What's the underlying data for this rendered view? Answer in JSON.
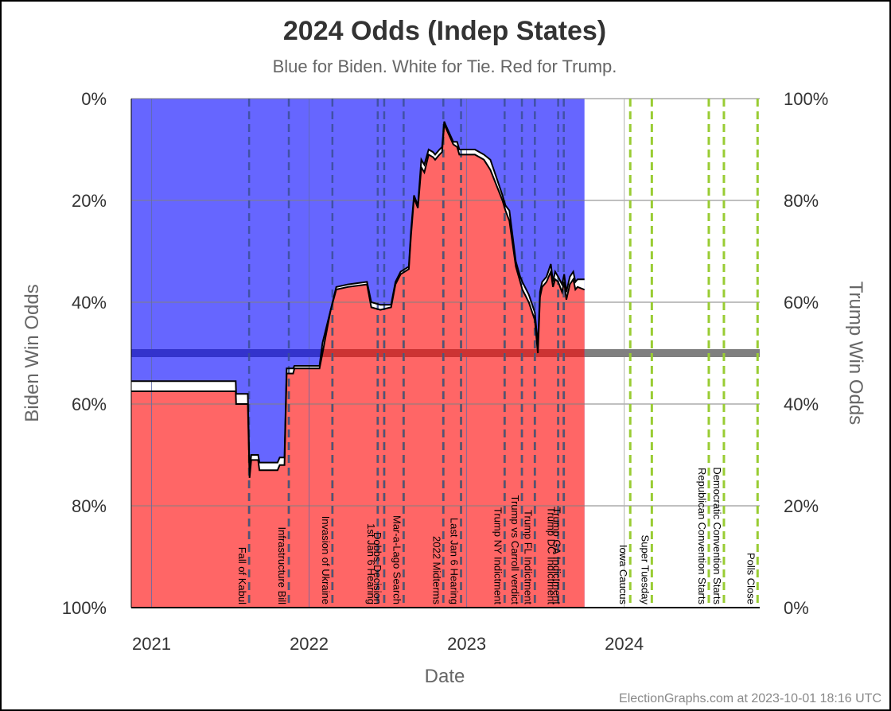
{
  "chart_data": {
    "type": "area",
    "title": "2024 Odds (Indep States)",
    "subtitle": "Blue for Biden. White for Tie. Red for Trump.",
    "xlabel": "Date",
    "ylabel_left": "Biden Win Odds",
    "ylabel_right": "Trump Win Odds",
    "x_ticks": [
      "2021",
      "2022",
      "2023",
      "2024"
    ],
    "y_ticks_left": [
      "0%",
      "20%",
      "40%",
      "60%",
      "80%",
      "100%"
    ],
    "y_ticks_right": [
      "100%",
      "80%",
      "60%",
      "40%",
      "20%",
      "0%"
    ],
    "x_range": [
      "2020-11-15",
      "2024-11-10"
    ],
    "y_range": [
      0,
      100
    ],
    "colors": {
      "biden": "#6666ff",
      "trump": "#ff6666",
      "tie": "#ffffff",
      "midline_biden": "#3333cc",
      "midline_trump": "#cc3333",
      "midline_future": "#808080",
      "past_event": "#cc6600",
      "past_event_blue": "#3a4e96",
      "future_event": "#99cc33"
    },
    "series": [
      {
        "name": "Biden",
        "points": [
          [
            "2020-11-15",
            55.5
          ],
          [
            "2021-07-15",
            55.5
          ],
          [
            "2021-07-16",
            58
          ],
          [
            "2021-08-12",
            58
          ],
          [
            "2021-08-16",
            73.5
          ],
          [
            "2021-08-20",
            70
          ],
          [
            "2021-09-05",
            70
          ],
          [
            "2021-09-08",
            71.5
          ],
          [
            "2021-10-20",
            71.5
          ],
          [
            "2021-10-25",
            70.5
          ],
          [
            "2021-11-05",
            70.5
          ],
          [
            "2021-11-10",
            53
          ],
          [
            "2021-11-25",
            53
          ],
          [
            "2021-11-28",
            52.5
          ],
          [
            "2022-01-25",
            52.5
          ],
          [
            "2022-02-01",
            48
          ],
          [
            "2022-02-20",
            41.5
          ],
          [
            "2022-03-05",
            37
          ],
          [
            "2022-04-01",
            36.5
          ],
          [
            "2022-05-15",
            36
          ],
          [
            "2022-05-25",
            40
          ],
          [
            "2022-06-15",
            40.5
          ],
          [
            "2022-07-10",
            40.5
          ],
          [
            "2022-07-20",
            36
          ],
          [
            "2022-08-01",
            34
          ],
          [
            "2022-08-20",
            33
          ],
          [
            "2022-08-25",
            26
          ],
          [
            "2022-09-01",
            19
          ],
          [
            "2022-09-10",
            21
          ],
          [
            "2022-09-18",
            12
          ],
          [
            "2022-09-25",
            13
          ],
          [
            "2022-10-05",
            10
          ],
          [
            "2022-10-15",
            10.5
          ],
          [
            "2022-10-20",
            11
          ],
          [
            "2022-10-30",
            10
          ],
          [
            "2022-11-05",
            9.5
          ],
          [
            "2022-11-10",
            4.5
          ],
          [
            "2022-11-15",
            5.5
          ],
          [
            "2022-12-01",
            8.5
          ],
          [
            "2022-12-10",
            8.5
          ],
          [
            "2022-12-15",
            10
          ],
          [
            "2023-01-20",
            10
          ],
          [
            "2023-02-10",
            11
          ],
          [
            "2023-02-25",
            12
          ],
          [
            "2023-03-25",
            19
          ],
          [
            "2023-04-01",
            21
          ],
          [
            "2023-04-10",
            22
          ],
          [
            "2023-04-25",
            32
          ],
          [
            "2023-05-05",
            35
          ],
          [
            "2023-05-10",
            36
          ],
          [
            "2023-05-25",
            38.5
          ],
          [
            "2023-06-08",
            42
          ],
          [
            "2023-06-15",
            48.5
          ],
          [
            "2023-06-20",
            38
          ],
          [
            "2023-06-25",
            36
          ],
          [
            "2023-07-05",
            35
          ],
          [
            "2023-07-15",
            32.5
          ],
          [
            "2023-07-20",
            36
          ],
          [
            "2023-07-25",
            34
          ],
          [
            "2023-08-01",
            35
          ],
          [
            "2023-08-10",
            36.5
          ],
          [
            "2023-08-15",
            34.5
          ],
          [
            "2023-08-20",
            38
          ],
          [
            "2023-08-28",
            35
          ],
          [
            "2023-09-05",
            34
          ],
          [
            "2023-09-10",
            36
          ],
          [
            "2023-09-15",
            35.5
          ],
          [
            "2023-09-30",
            35.5
          ]
        ]
      },
      {
        "name": "Trump",
        "points": [
          [
            "2020-11-15",
            57.5
          ],
          [
            "2021-07-15",
            57.5
          ],
          [
            "2021-07-16",
            60
          ],
          [
            "2021-08-12",
            60
          ],
          [
            "2021-08-16",
            74.5
          ],
          [
            "2021-08-20",
            71
          ],
          [
            "2021-09-05",
            71
          ],
          [
            "2021-09-08",
            73
          ],
          [
            "2021-10-20",
            73
          ],
          [
            "2021-10-25",
            72
          ],
          [
            "2021-11-05",
            72
          ],
          [
            "2021-11-10",
            54
          ],
          [
            "2021-11-25",
            54
          ],
          [
            "2021-11-28",
            53
          ],
          [
            "2022-01-25",
            53
          ],
          [
            "2022-02-01",
            50
          ],
          [
            "2022-02-20",
            41.5
          ],
          [
            "2022-03-05",
            37.5
          ],
          [
            "2022-04-01",
            37
          ],
          [
            "2022-05-15",
            36.5
          ],
          [
            "2022-05-25",
            41
          ],
          [
            "2022-06-15",
            41.5
          ],
          [
            "2022-07-10",
            41
          ],
          [
            "2022-07-20",
            36.5
          ],
          [
            "2022-08-01",
            34.5
          ],
          [
            "2022-08-20",
            33.5
          ],
          [
            "2022-08-25",
            27
          ],
          [
            "2022-09-01",
            19.5
          ],
          [
            "2022-09-10",
            21.5
          ],
          [
            "2022-09-18",
            13.5
          ],
          [
            "2022-09-25",
            14.5
          ],
          [
            "2022-10-05",
            11
          ],
          [
            "2022-10-15",
            11.5
          ],
          [
            "2022-10-20",
            12
          ],
          [
            "2022-10-30",
            11
          ],
          [
            "2022-11-05",
            10.5
          ],
          [
            "2022-11-10",
            5
          ],
          [
            "2022-11-15",
            6
          ],
          [
            "2022-12-01",
            9
          ],
          [
            "2022-12-10",
            9.5
          ],
          [
            "2022-12-15",
            11
          ],
          [
            "2023-01-20",
            11
          ],
          [
            "2023-02-10",
            12
          ],
          [
            "2023-02-25",
            14
          ],
          [
            "2023-03-25",
            20
          ],
          [
            "2023-04-01",
            22
          ],
          [
            "2023-04-10",
            24
          ],
          [
            "2023-04-25",
            33
          ],
          [
            "2023-05-05",
            36
          ],
          [
            "2023-05-10",
            37.5
          ],
          [
            "2023-05-25",
            40
          ],
          [
            "2023-06-08",
            43.5
          ],
          [
            "2023-06-15",
            50
          ],
          [
            "2023-06-20",
            39
          ],
          [
            "2023-06-25",
            37
          ],
          [
            "2023-07-05",
            36
          ],
          [
            "2023-07-15",
            34
          ],
          [
            "2023-07-20",
            37
          ],
          [
            "2023-07-25",
            35.5
          ],
          [
            "2023-08-01",
            36
          ],
          [
            "2023-08-10",
            38
          ],
          [
            "2023-08-15",
            36
          ],
          [
            "2023-08-20",
            39.5
          ],
          [
            "2023-08-28",
            36.5
          ],
          [
            "2023-09-05",
            35.5
          ],
          [
            "2023-09-10",
            37.5
          ],
          [
            "2023-09-15",
            37
          ],
          [
            "2023-09-30",
            37.5
          ]
        ]
      }
    ],
    "events": [
      {
        "label": "Fall of Kabul",
        "date": "2021-08-15",
        "future": false
      },
      {
        "label": "Infrastructure Bill",
        "date": "2021-11-15",
        "future": false
      },
      {
        "label": "Invasion of Ukraine",
        "date": "2022-02-24",
        "future": false
      },
      {
        "label": "1st Jan 6 Hearing",
        "date": "2022-06-09",
        "future": false
      },
      {
        "label": "Dobbs Decision",
        "date": "2022-06-24",
        "future": false
      },
      {
        "label": "Mar-a-Lago Search",
        "date": "2022-08-08",
        "future": false
      },
      {
        "label": "2022 Midterms",
        "date": "2022-11-08",
        "future": false
      },
      {
        "label": "Last Jan 6 Hearing",
        "date": "2022-12-19",
        "future": false
      },
      {
        "label": "Trump NY Indictment",
        "date": "2023-03-30",
        "future": false
      },
      {
        "label": "Trump vs Carroll verdict",
        "date": "2023-05-09",
        "future": false
      },
      {
        "label": "Trump FL Indictment",
        "date": "2023-06-08",
        "future": false
      },
      {
        "label": "Trump DC Indictment",
        "date": "2023-08-01",
        "future": false
      },
      {
        "label": "Trump GA Indictment",
        "date": "2023-08-14",
        "future": false
      },
      {
        "label": "Iowa Caucus",
        "date": "2024-01-15",
        "future": true
      },
      {
        "label": "Super Tuesday",
        "date": "2024-03-05",
        "future": true
      },
      {
        "label": "Republican Convention Starts",
        "date": "2024-07-15",
        "future": true
      },
      {
        "label": "Democratic Convention Starts",
        "date": "2024-08-19",
        "future": true
      },
      {
        "label": "Polls Close",
        "date": "2024-11-05",
        "future": true
      }
    ],
    "data_end": "2023-10-01",
    "grid": true
  },
  "credit": "ElectionGraphs.com at 2023-10-01 18:16 UTC"
}
